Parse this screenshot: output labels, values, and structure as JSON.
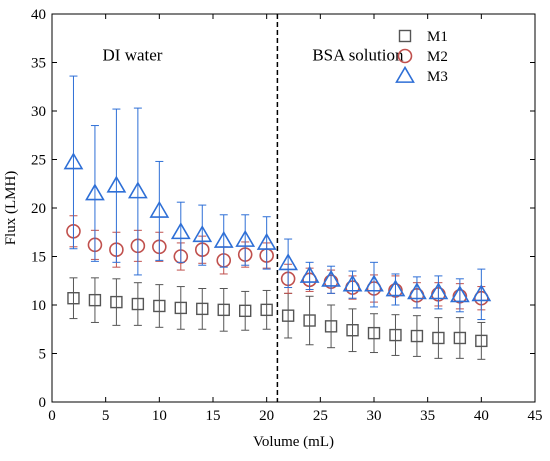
{
  "chart_data": {
    "type": "scatter",
    "xlabel": "Volume (mL)",
    "ylabel": "Flux (LMH)",
    "xlim": [
      0,
      45
    ],
    "ylim": [
      0,
      40
    ],
    "xticks": [
      0,
      5,
      10,
      15,
      20,
      25,
      30,
      35,
      40,
      45
    ],
    "yticks": [
      0,
      5,
      10,
      15,
      20,
      25,
      30,
      35,
      40
    ],
    "grid": false,
    "legend": "top-right",
    "divider_x": 21,
    "annotations": [
      {
        "text": "DI water",
        "x": 7.5,
        "y": 35.2
      },
      {
        "text": "BSA solution",
        "x": 28.5,
        "y": 35.2
      }
    ],
    "series": [
      {
        "name": "M1",
        "marker": "square",
        "color": "#555555",
        "x": [
          2,
          4,
          6,
          8,
          10,
          12,
          14,
          16,
          18,
          20,
          22,
          24,
          26,
          28,
          30,
          32,
          34,
          36,
          38,
          40
        ],
        "y": [
          10.7,
          10.5,
          10.3,
          10.1,
          9.9,
          9.7,
          9.6,
          9.5,
          9.4,
          9.5,
          8.9,
          8.4,
          7.8,
          7.4,
          7.1,
          6.9,
          6.8,
          6.6,
          6.6,
          6.3
        ],
        "err": [
          2.1,
          2.3,
          2.4,
          2.2,
          2.2,
          2.2,
          2.1,
          2.2,
          2.0,
          2.0,
          2.3,
          2.5,
          2.2,
          2.2,
          2.0,
          2.1,
          2.1,
          2.1,
          2.1,
          1.9
        ]
      },
      {
        "name": "M2",
        "marker": "circle",
        "color": "#c0504d",
        "x": [
          2,
          4,
          6,
          8,
          10,
          12,
          14,
          16,
          18,
          20,
          22,
          24,
          26,
          28,
          30,
          32,
          34,
          36,
          38,
          40
        ],
        "y": [
          17.6,
          16.2,
          15.7,
          16.1,
          16.0,
          15.0,
          15.7,
          14.6,
          15.2,
          15.1,
          12.7,
          12.6,
          12.4,
          11.8,
          11.7,
          11.5,
          11.0,
          11.1,
          10.9,
          10.7
        ],
        "err": [
          1.6,
          1.5,
          1.8,
          1.6,
          1.5,
          1.4,
          1.4,
          1.4,
          1.3,
          1.3,
          1.5,
          1.2,
          1.2,
          1.2,
          1.4,
          1.5,
          1.3,
          1.2,
          1.3,
          1.2
        ]
      },
      {
        "name": "M3",
        "marker": "triangle",
        "color": "#2e6fd6",
        "x": [
          2,
          4,
          6,
          8,
          10,
          12,
          14,
          16,
          18,
          20,
          22,
          24,
          26,
          28,
          30,
          32,
          34,
          36,
          38,
          40
        ],
        "y": [
          24.7,
          21.5,
          22.3,
          21.7,
          19.7,
          17.5,
          17.2,
          16.6,
          16.7,
          16.4,
          14.3,
          13.0,
          12.6,
          12.1,
          12.1,
          11.6,
          11.3,
          11.3,
          11.0,
          11.1
        ],
        "err": [
          8.9,
          7.0,
          7.9,
          8.6,
          5.1,
          3.1,
          3.1,
          2.7,
          2.6,
          2.7,
          2.5,
          1.4,
          1.4,
          1.4,
          2.3,
          1.6,
          1.6,
          1.7,
          1.7,
          2.6
        ]
      }
    ]
  }
}
